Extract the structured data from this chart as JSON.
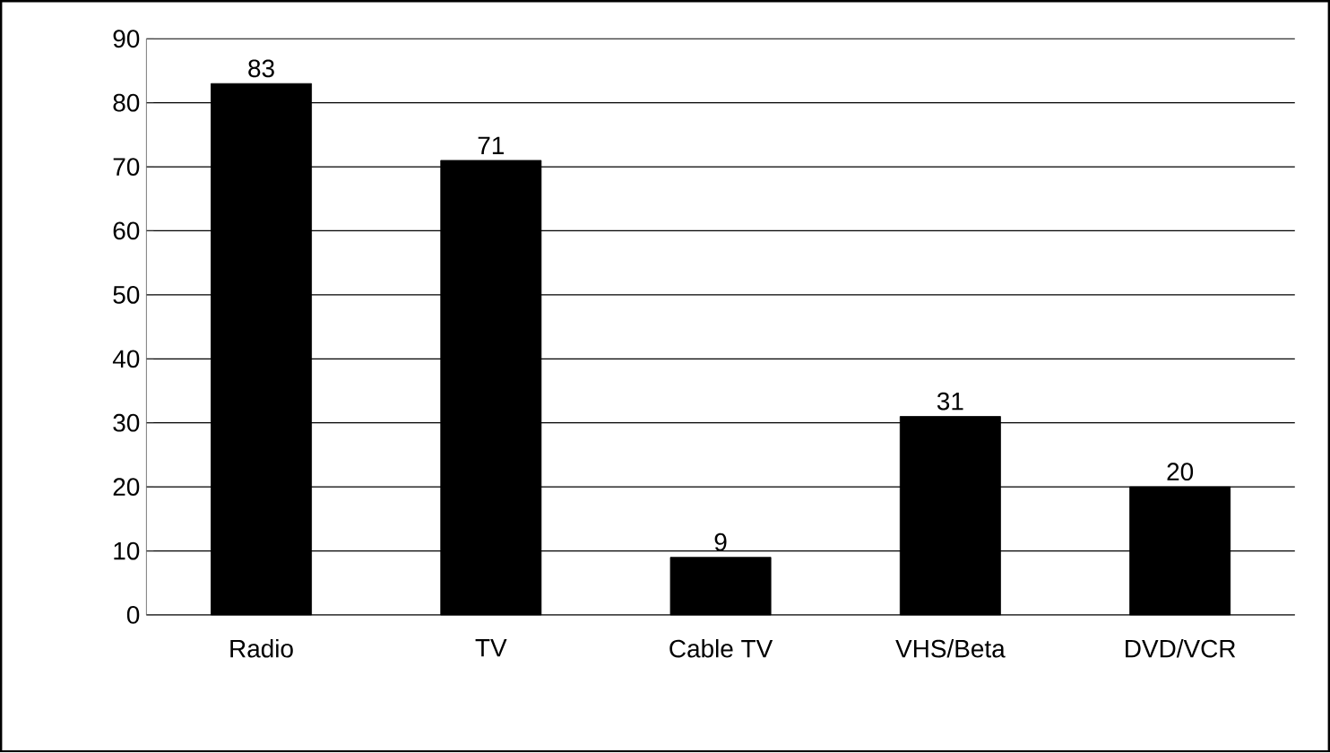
{
  "chart_data": {
    "type": "bar",
    "categories": [
      "Radio",
      "TV",
      "Cable TV",
      "VHS/Beta",
      "DVD/VCR"
    ],
    "values": [
      83,
      71,
      9,
      31,
      20
    ],
    "color": "#000000",
    "ylim": [
      0,
      90
    ],
    "yticks": [
      0,
      10,
      20,
      30,
      40,
      50,
      60,
      70,
      80,
      90
    ],
    "grid": "y",
    "data_labels": true
  }
}
